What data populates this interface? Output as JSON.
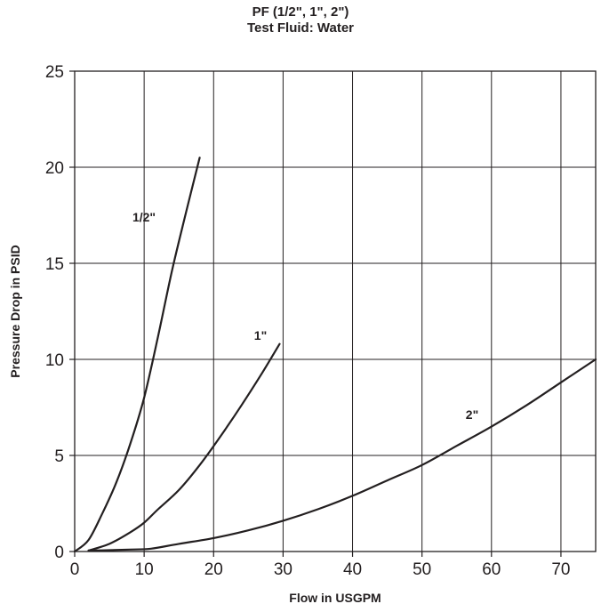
{
  "chart_data": {
    "type": "line",
    "title": "PF (1/2\", 1\", 2\")",
    "subtitle": "Test Fluid: Water",
    "xlabel": "Flow in USGPM",
    "ylabel": "Pressure Drop in PSID",
    "xlim": [
      0,
      75
    ],
    "ylim": [
      0,
      25
    ],
    "xticks": [
      0,
      10,
      20,
      30,
      40,
      50,
      60,
      70
    ],
    "yticks": [
      0,
      5,
      10,
      15,
      20,
      25
    ],
    "grid": true,
    "series": [
      {
        "name": "1/2\"",
        "x": [
          0,
          2,
          4,
          6,
          8,
          10,
          12,
          14,
          16,
          18
        ],
        "y": [
          0,
          0.6,
          2.0,
          3.6,
          5.6,
          8.0,
          11.2,
          14.6,
          17.6,
          20.5
        ]
      },
      {
        "name": "1\"",
        "x": [
          2,
          5,
          8,
          10,
          12,
          15,
          18,
          21,
          24,
          27,
          29.5
        ],
        "y": [
          0.05,
          0.4,
          1.0,
          1.5,
          2.2,
          3.2,
          4.5,
          6.0,
          7.6,
          9.3,
          10.8
        ]
      },
      {
        "name": "2\"",
        "x": [
          2,
          5,
          8,
          11,
          15,
          20,
          25,
          30,
          35,
          40,
          45,
          50,
          55,
          60,
          65,
          70,
          75
        ],
        "y": [
          0.05,
          0.07,
          0.1,
          0.15,
          0.4,
          0.7,
          1.1,
          1.6,
          2.2,
          2.9,
          3.7,
          4.5,
          5.5,
          6.5,
          7.6,
          8.8,
          10.0
        ]
      }
    ]
  }
}
